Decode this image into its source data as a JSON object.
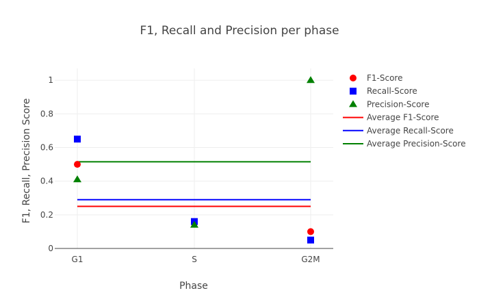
{
  "chart_data": {
    "type": "scatter",
    "title": "F1, Recall and Precision per phase",
    "xlabel": "Phase",
    "ylabel": "F1, Recall, Precision Score",
    "categories": [
      "G1",
      "S",
      "G2M"
    ],
    "ylim": [
      0,
      1.07
    ],
    "yticks": [
      0,
      0.2,
      0.4,
      0.6,
      0.8,
      1
    ],
    "ytick_labels": [
      "0",
      "0.2",
      "0.4",
      "0.6",
      "0.8",
      "1"
    ],
    "grid": true,
    "legend_position": "right",
    "series": [
      {
        "name": "F1-Score",
        "type": "markers",
        "marker": "circle",
        "color": "#ff0000",
        "values": [
          0.5,
          0.15,
          0.1
        ]
      },
      {
        "name": "Recall-Score",
        "type": "markers",
        "marker": "square",
        "color": "#0000ff",
        "values": [
          0.65,
          0.16,
          0.05
        ]
      },
      {
        "name": "Precision-Score",
        "type": "markers",
        "marker": "triangle-up",
        "color": "#008000",
        "values": [
          0.41,
          0.14,
          1.0
        ]
      },
      {
        "name": "Average F1-Score",
        "type": "line",
        "color": "#ff0000",
        "values": [
          0.25,
          0.25,
          0.25
        ]
      },
      {
        "name": "Average Recall-Score",
        "type": "line",
        "color": "#0000ff",
        "values": [
          0.29,
          0.29,
          0.29
        ]
      },
      {
        "name": "Average Precision-Score",
        "type": "line",
        "color": "#008000",
        "values": [
          0.515,
          0.515,
          0.515
        ]
      }
    ]
  }
}
